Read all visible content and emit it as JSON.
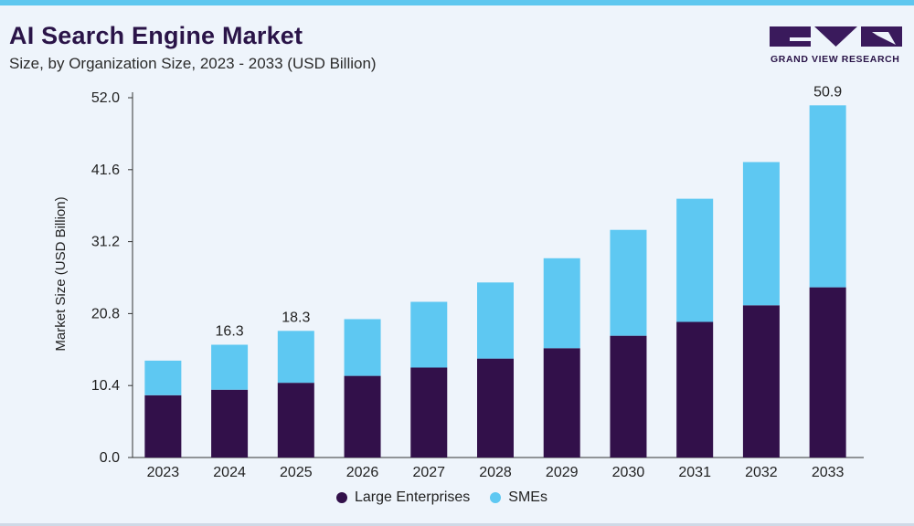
{
  "header": {
    "title": "AI Search Engine Market",
    "subtitle": "Size, by Organization Size, 2023 - 2033 (USD Billion)"
  },
  "logo": {
    "text": "GRAND VIEW RESEARCH"
  },
  "colors": {
    "large": "#32104a",
    "sme": "#5ec8f2"
  },
  "chart_data": {
    "type": "bar",
    "stacked": true,
    "categories": [
      "2023",
      "2024",
      "2025",
      "2026",
      "2027",
      "2028",
      "2029",
      "2030",
      "2031",
      "2032",
      "2033"
    ],
    "series": [
      {
        "name": "Large Enterprises",
        "values": [
          9.0,
          9.8,
          10.8,
          11.8,
          13.0,
          14.3,
          15.8,
          17.6,
          19.6,
          22.0,
          24.6
        ]
      },
      {
        "name": "SMEs",
        "values": [
          5.0,
          6.5,
          7.5,
          8.2,
          9.5,
          11.0,
          13.0,
          15.3,
          17.8,
          20.7,
          26.3
        ]
      }
    ],
    "totals_labels": {
      "2024": "16.3",
      "2025": "18.3",
      "2033": "50.9"
    },
    "ylabel": "Market Size (USD Billion)",
    "xlabel": "",
    "ylim": [
      0,
      52
    ],
    "yticks": [
      "0.0",
      "10.4",
      "20.8",
      "31.2",
      "41.6",
      "52.0"
    ],
    "grid": false,
    "legend_position": "bottom"
  }
}
